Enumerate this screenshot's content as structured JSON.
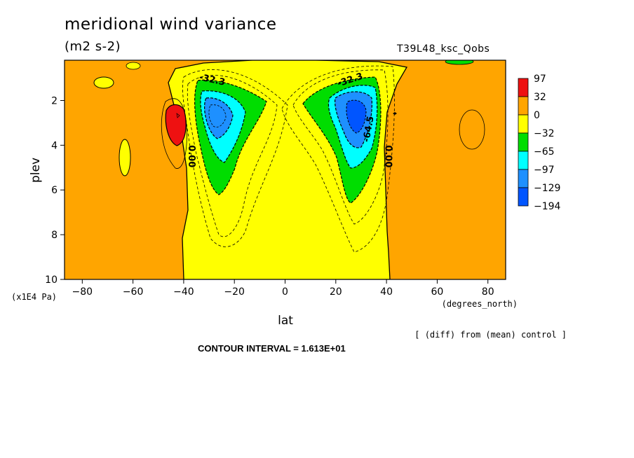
{
  "chart_data": {
    "type": "heatmap",
    "title": "meridional wind variance",
    "subtitle": "(m2 s-2)",
    "run_label": "T39L48_ksc_Qobs",
    "xlabel": "lat",
    "xunits": "(degrees_north)",
    "ylabel": "plev",
    "yunits": "(x1E4 Pa)",
    "xlim": [
      -87,
      87
    ],
    "ylim": [
      10,
      0.2
    ],
    "x_ticks": [
      -80,
      -60,
      -40,
      -20,
      0,
      20,
      40,
      60,
      80
    ],
    "x_tick_labels": [
      "−80",
      "−60",
      "−40",
      "−20",
      "0",
      "20",
      "40",
      "60",
      "80"
    ],
    "y_ticks": [
      2,
      4,
      6,
      8,
      10
    ],
    "y_tick_labels": [
      "2",
      "4",
      "6",
      "8",
      "10"
    ],
    "note": "[ (diff) from (mean) control ]",
    "contour_interval": "CONTOUR INTERVAL = 1.613E+01",
    "contour_labels": [
      {
        "text": "-32.3",
        "lat": -29,
        "plev": 1.2,
        "angle": 12
      },
      {
        "text": "-32.3",
        "lat": 26,
        "plev": 1.2,
        "angle": -18
      },
      {
        "text": "-64.5",
        "lat": 34,
        "plev": 3.3,
        "angle": -80
      },
      {
        "text": "0.00",
        "lat": -38,
        "plev": 4.5,
        "angle": 90
      },
      {
        "text": "0.00",
        "lat": 39.5,
        "plev": 4.5,
        "angle": 90
      }
    ],
    "legend": {
      "position": "right",
      "labels": [
        "97",
        "32",
        "0",
        "−32",
        "−65",
        "−97",
        "−129",
        "−194"
      ],
      "colors": [
        "#ee1111",
        "#ffa500",
        "#ffff00",
        "#00dd00",
        "#00ffff",
        "#1e90ff",
        "#0055ff"
      ]
    },
    "colors": {
      "positive_strong": "#ee1111",
      "positive": "#ffa500",
      "zero": "#ffff00",
      "neg1": "#00dd00",
      "neg2": "#00ffff",
      "neg3": "#1e90ff",
      "neg4": "#0055ff"
    }
  }
}
